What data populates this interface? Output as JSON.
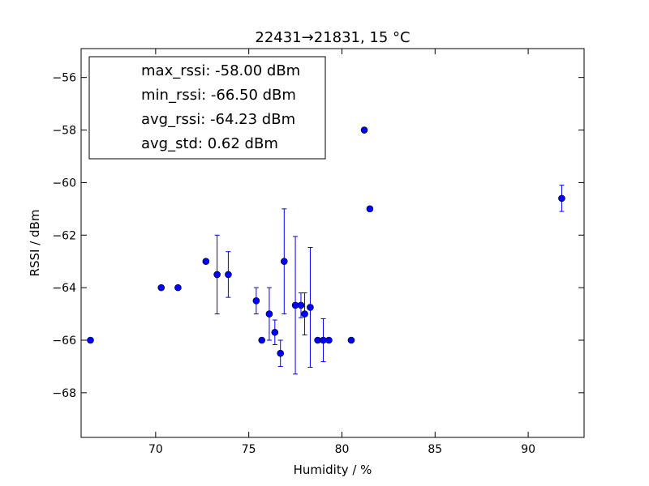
{
  "chart_data": {
    "type": "scatter",
    "title": "22431→21831, 15 °C",
    "xlabel": "Humidity / %",
    "ylabel": "RSSI / dBm",
    "xlim": [
      66,
      93
    ],
    "ylim": [
      -69.7,
      -54.9
    ],
    "xticks": [
      70,
      75,
      80,
      85,
      90
    ],
    "yticks": [
      -56,
      -58,
      -60,
      -62,
      -64,
      -66,
      -68
    ],
    "xtick_labels": [
      "70",
      "75",
      "80",
      "85",
      "90"
    ],
    "ytick_labels": [
      "−56",
      "−58",
      "−60",
      "−62",
      "−64",
      "−66",
      "−68"
    ],
    "grid": false,
    "marker_color": "#0000ff",
    "errorbar_color": "#0000ff",
    "legend": {
      "placement": "top-left",
      "entries": [
        "max_rssi: -58.00 dBm",
        "min_rssi: -66.50 dBm",
        "avg_rssi: -64.23 dBm",
        "avg_std: 0.62 dBm"
      ]
    },
    "points": [
      {
        "x": 66.5,
        "y": -66.0,
        "err": 0
      },
      {
        "x": 70.3,
        "y": -64.0,
        "err": 0
      },
      {
        "x": 71.2,
        "y": -64.0,
        "err": 0
      },
      {
        "x": 72.7,
        "y": -63.0,
        "err": 0
      },
      {
        "x": 73.3,
        "y": -63.5,
        "err": 1.5
      },
      {
        "x": 73.9,
        "y": -63.5,
        "err": 0.87
      },
      {
        "x": 75.4,
        "y": -64.5,
        "err": 0.5
      },
      {
        "x": 75.7,
        "y": -66.0,
        "err": 0
      },
      {
        "x": 76.1,
        "y": -65.0,
        "err": 1.0
      },
      {
        "x": 76.4,
        "y": -65.7,
        "err": 0.47
      },
      {
        "x": 76.7,
        "y": -66.5,
        "err": 0.5
      },
      {
        "x": 76.9,
        "y": -63.0,
        "err": 2.0
      },
      {
        "x": 77.5,
        "y": -64.67,
        "err": 2.62
      },
      {
        "x": 77.8,
        "y": -64.67,
        "err": 0.47
      },
      {
        "x": 78.0,
        "y": -65.0,
        "err": 0.8
      },
      {
        "x": 78.3,
        "y": -64.75,
        "err": 2.28
      },
      {
        "x": 78.7,
        "y": -66.0,
        "err": 0
      },
      {
        "x": 79.0,
        "y": -66.0,
        "err": 0.82
      },
      {
        "x": 79.3,
        "y": -66.0,
        "err": 0
      },
      {
        "x": 80.5,
        "y": -66.0,
        "err": 0
      },
      {
        "x": 81.2,
        "y": -58.0,
        "err": 0
      },
      {
        "x": 81.5,
        "y": -61.0,
        "err": 0
      },
      {
        "x": 91.8,
        "y": -60.6,
        "err": 0.5
      }
    ]
  }
}
